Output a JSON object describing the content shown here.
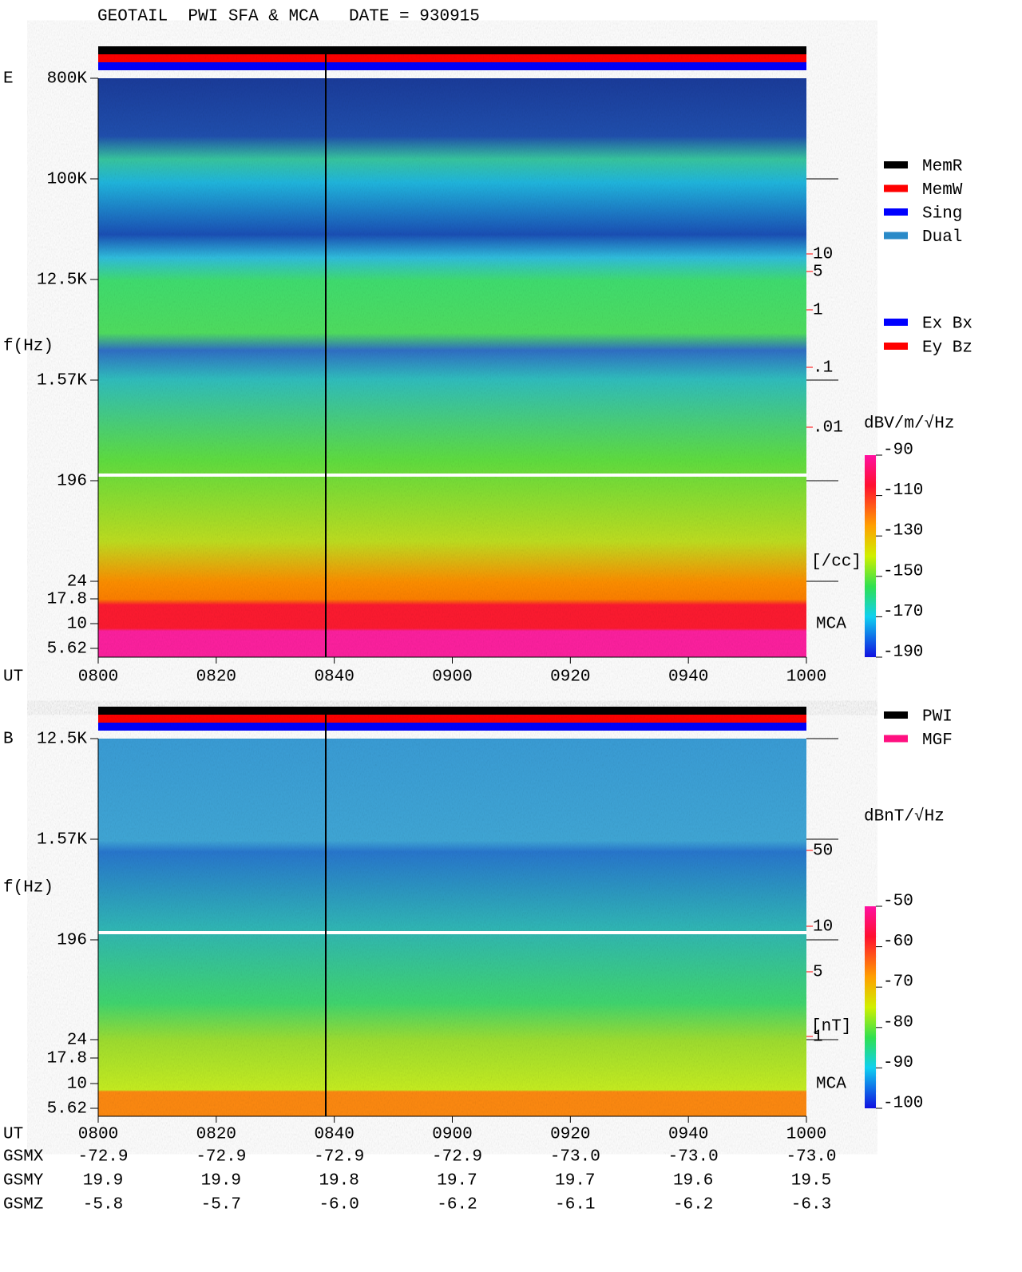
{
  "title": "GEOTAIL  PWI SFA & MCA   DATE = 930915",
  "panels": [
    {
      "label": "E",
      "ylabel": "f(Hz)",
      "time_label": "UT",
      "freq_ticks": [
        "800K",
        "100K",
        "12.5K",
        "1.57K",
        "196",
        "24",
        "17.8",
        "10",
        "5.62"
      ],
      "times": [
        "0800",
        "0820",
        "0840",
        "0900",
        "0920",
        "0940",
        "1000"
      ],
      "mca": "MCA",
      "right_scale": [
        "10",
        "5",
        "1",
        ".1",
        ".01"
      ],
      "right_unit": "[/cc]",
      "legend": [
        {
          "name": "MemR",
          "color": "#000000"
        },
        {
          "name": "MemW",
          "color": "#ff0000"
        },
        {
          "name": "Sing",
          "color": "#0000ff"
        },
        {
          "name": "Dual",
          "color": "#2a8ac8"
        }
      ],
      "legend2": [
        {
          "name": "Ex Bx",
          "color": "#0000ff"
        },
        {
          "name": "Ey Bz",
          "color": "#ff0000"
        }
      ],
      "colorbar_unit": "dBV/m/√Hz",
      "colorbar_lim": [
        -190,
        -90
      ],
      "colorbar_ticks": [
        -90,
        -110,
        -130,
        -150,
        -170,
        -190
      ]
    },
    {
      "label": "B",
      "ylabel": "f(Hz)",
      "time_label": "UT",
      "freq_ticks": [
        "12.5K",
        "1.57K",
        "196",
        "24",
        "17.8",
        "10",
        "5.62"
      ],
      "times": [
        "0800",
        "0820",
        "0840",
        "0900",
        "0920",
        "0940",
        "1000"
      ],
      "mca": "MCA",
      "right_scale": [
        "50",
        "10",
        "5",
        "1"
      ],
      "right_unit": "[nT]",
      "legend": [
        {
          "name": "PWI",
          "color": "#000000"
        },
        {
          "name": "MGF",
          "color": "#ff1080"
        }
      ],
      "colorbar_unit": "dBnT/√Hz",
      "colorbar_lim": [
        -100,
        -50
      ],
      "colorbar_ticks": [
        -50,
        -60,
        -70,
        -80,
        -90,
        -100
      ]
    }
  ],
  "orbit": [
    {
      "label": "GSMX",
      "values": [
        "-72.9",
        "-72.9",
        "-72.9",
        "-72.9",
        "-73.0",
        "-73.0",
        "-73.0"
      ]
    },
    {
      "label": "GSMY",
      "values": [
        "19.9",
        "19.9",
        "19.8",
        "19.7",
        "19.7",
        "19.6",
        "19.5"
      ]
    },
    {
      "label": "GSMZ",
      "values": [
        "-5.8",
        "-5.7",
        "-6.0",
        "-6.2",
        "-6.1",
        "-6.2",
        "-6.3"
      ]
    }
  ]
}
